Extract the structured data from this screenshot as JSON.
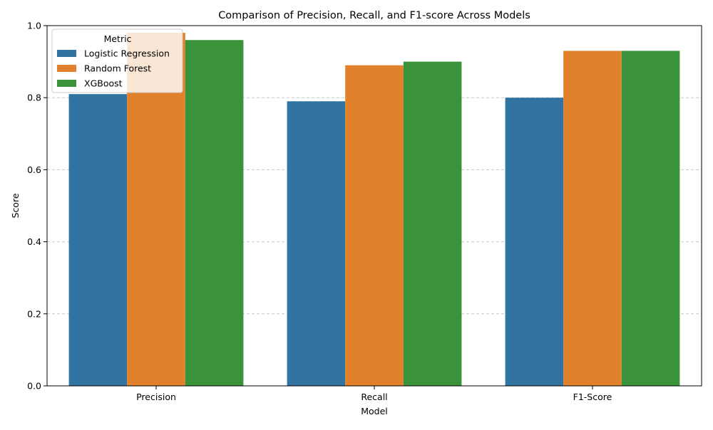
{
  "chart_data": {
    "type": "bar",
    "title": "Comparison of Precision, Recall, and F1-score Across Models",
    "xlabel": "Model",
    "ylabel": "Score",
    "categories": [
      "Precision",
      "Recall",
      "F1-Score"
    ],
    "series": [
      {
        "name": "Logistic Regression",
        "color": "#3274a1",
        "values": [
          0.81,
          0.79,
          0.8
        ]
      },
      {
        "name": "Random Forest",
        "color": "#e1812c",
        "values": [
          0.98,
          0.89,
          0.93
        ]
      },
      {
        "name": "XGBoost",
        "color": "#3a923a",
        "values": [
          0.96,
          0.9,
          0.93
        ]
      }
    ],
    "ylim": [
      0,
      1.0
    ],
    "yticks": [
      "0.0",
      "0.2",
      "0.4",
      "0.6",
      "0.8",
      "1.0"
    ],
    "grid": {
      "axis": "y",
      "style": "dashed",
      "color": "#c8c8c8"
    },
    "legend": {
      "title": "Metric",
      "placement": "top-left"
    }
  }
}
